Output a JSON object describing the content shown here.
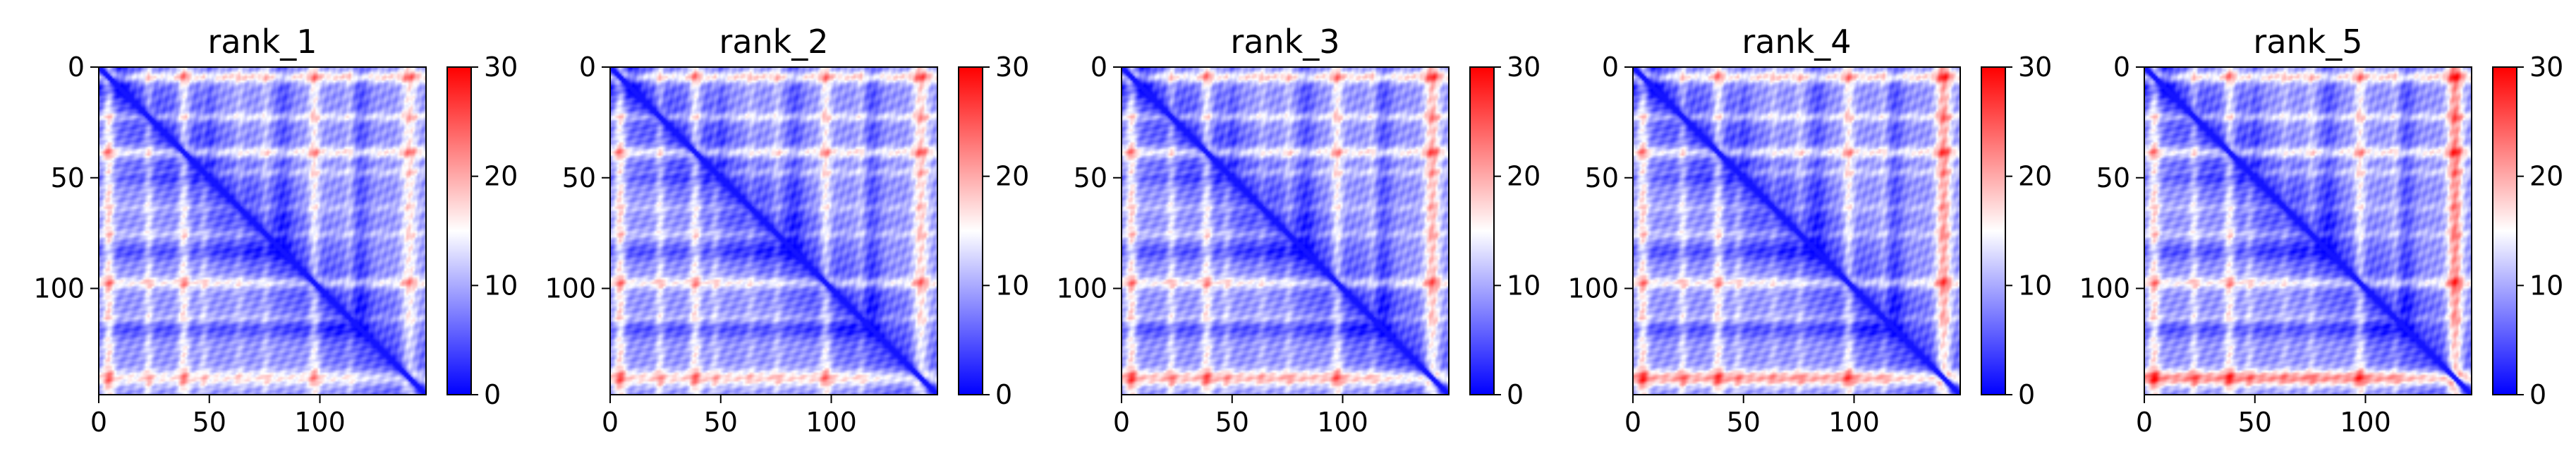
{
  "chart_data": [
    {
      "type": "heatmap",
      "title": "rank_1",
      "xticks": [
        "0",
        "50",
        "100"
      ],
      "yticks": [
        "0",
        "50",
        "100"
      ],
      "colorbar_ticks": [
        "0",
        "10",
        "20",
        "30"
      ],
      "xlim": [
        0,
        148
      ],
      "ylim": [
        148,
        0
      ],
      "clim": [
        0,
        30
      ],
      "colormap": "bwr",
      "n": 148
    },
    {
      "type": "heatmap",
      "title": "rank_2",
      "xticks": [
        "0",
        "50",
        "100"
      ],
      "yticks": [
        "0",
        "50",
        "100"
      ],
      "colorbar_ticks": [
        "0",
        "10",
        "20",
        "30"
      ],
      "xlim": [
        0,
        148
      ],
      "ylim": [
        148,
        0
      ],
      "clim": [
        0,
        30
      ],
      "colormap": "bwr",
      "n": 148
    },
    {
      "type": "heatmap",
      "title": "rank_3",
      "xticks": [
        "0",
        "50",
        "100"
      ],
      "yticks": [
        "0",
        "50",
        "100"
      ],
      "colorbar_ticks": [
        "0",
        "10",
        "20",
        "30"
      ],
      "xlim": [
        0,
        148
      ],
      "ylim": [
        148,
        0
      ],
      "clim": [
        0,
        30
      ],
      "colormap": "bwr",
      "n": 148
    },
    {
      "type": "heatmap",
      "title": "rank_4",
      "xticks": [
        "0",
        "50",
        "100"
      ],
      "yticks": [
        "0",
        "50",
        "100"
      ],
      "colorbar_ticks": [
        "0",
        "10",
        "20",
        "30"
      ],
      "xlim": [
        0,
        148
      ],
      "ylim": [
        148,
        0
      ],
      "clim": [
        0,
        30
      ],
      "colormap": "bwr",
      "n": 148
    },
    {
      "type": "heatmap",
      "title": "rank_5",
      "xticks": [
        "0",
        "50",
        "100"
      ],
      "yticks": [
        "0",
        "50",
        "100"
      ],
      "colorbar_ticks": [
        "0",
        "10",
        "20",
        "30"
      ],
      "xlim": [
        0,
        148
      ],
      "ylim": [
        148,
        0
      ],
      "clim": [
        0,
        30
      ],
      "colormap": "bwr",
      "n": 148
    }
  ],
  "colors": {
    "low": "#0000ff",
    "mid": "#ffffff",
    "high": "#ff0000"
  }
}
